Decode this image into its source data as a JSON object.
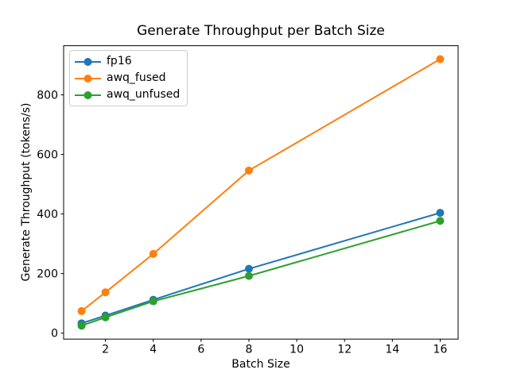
{
  "chart_data": {
    "type": "line",
    "title": "Generate Throughput per Batch Size",
    "xlabel": "Batch Size",
    "ylabel": "Generate Throughput (tokens/s)",
    "x": [
      1,
      2,
      4,
      8,
      16
    ],
    "series": [
      {
        "name": "fp16",
        "color": "#1f77b4",
        "values": [
          33,
          59,
          112,
          216,
          404
        ]
      },
      {
        "name": "awq_fused",
        "color": "#ff7f0e",
        "values": [
          74,
          137,
          266,
          546,
          920
        ]
      },
      {
        "name": "awq_unfused",
        "color": "#2ca02c",
        "values": [
          25,
          53,
          107,
          192,
          377
        ]
      }
    ],
    "xticks": [
      2,
      4,
      6,
      8,
      10,
      12,
      14,
      16
    ],
    "yticks": [
      0,
      200,
      400,
      600,
      800
    ],
    "xlim": [
      0.25,
      16.75
    ],
    "ylim": [
      -20,
      965
    ],
    "grid": false,
    "legend_position": "upper-left",
    "marker": "o",
    "marker_radius": 5,
    "line_width": 2,
    "axis_color": "#000000",
    "text_color": "#000000",
    "background": "#ffffff"
  }
}
